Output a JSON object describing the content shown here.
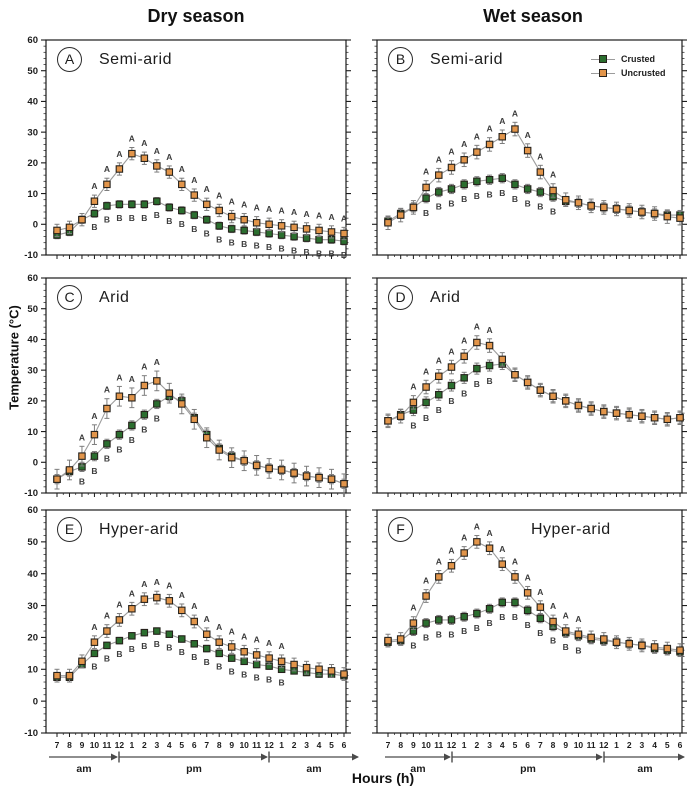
{
  "figure": {
    "column_headers": [
      "Dry season",
      "Wet season"
    ],
    "ylabel": "Temperature (°C)",
    "xlabel": "Hours (h)",
    "hours": [
      "7",
      "8",
      "9",
      "10",
      "11",
      "12",
      "1",
      "2",
      "3",
      "4",
      "5",
      "6",
      "7",
      "8",
      "9",
      "10",
      "11",
      "12",
      "1",
      "2",
      "3",
      "4",
      "5",
      "6"
    ],
    "yticks": [
      60,
      50,
      40,
      30,
      20,
      10,
      0,
      -10
    ],
    "ylim": [
      -10,
      60
    ],
    "period_labels": [
      "am",
      "pm",
      "am"
    ],
    "legend": {
      "crusted": "Crusted",
      "uncrusted": "Uncrusted"
    },
    "sig_letters": {
      "uncrusted": "A",
      "crusted": "B"
    },
    "colors": {
      "crusted": "#2b6e2f",
      "uncrusted": "#e2954a",
      "marker_outline": "#26221c",
      "line": "#9c9c9c",
      "error_bar": "#7d7d7d",
      "axis": "#1a1a1a",
      "letter": "#3c3c3c"
    }
  },
  "chart_data": [
    {
      "id": "A",
      "label": "Semi-arid",
      "season": "Dry season",
      "row": 0,
      "col": 0,
      "type": "line",
      "series": [
        {
          "name": "Crusted",
          "err": 1.2,
          "values": [
            -3.5,
            -2.5,
            1.5,
            3.5,
            6,
            6.5,
            6.5,
            6.5,
            7.5,
            5.5,
            4.5,
            3,
            1.5,
            -0.5,
            -1.5,
            -2,
            -2.5,
            -3,
            -3.5,
            -4,
            -4.5,
            -5,
            -5,
            -5.5
          ]
        },
        {
          "name": "Uncrusted",
          "err": 2.0,
          "values": [
            -2,
            -1,
            1.5,
            7.5,
            13,
            18,
            23,
            21.5,
            19,
            17,
            13,
            9.5,
            6.5,
            4.5,
            2.5,
            1.5,
            0.5,
            0,
            -0.5,
            -1,
            -1.5,
            -2,
            -2.5,
            -3
          ]
        }
      ],
      "sig_range": [
        3,
        23
      ]
    },
    {
      "id": "B",
      "label": "Semi-arid",
      "season": "Wet season",
      "row": 0,
      "col": 1,
      "type": "line",
      "show_legend": true,
      "series": [
        {
          "name": "Crusted",
          "err": 1.5,
          "values": [
            1,
            3.5,
            5.5,
            8.5,
            10.5,
            11.5,
            13,
            14,
            14.5,
            15,
            13,
            11.5,
            10.5,
            9,
            7.5,
            7,
            6,
            5.5,
            5,
            4.5,
            4,
            3.5,
            3,
            3
          ]
        },
        {
          "name": "Uncrusted",
          "err": 2.2,
          "values": [
            0.5,
            3,
            5.5,
            12,
            16,
            18.5,
            21,
            23.5,
            26,
            28.5,
            31,
            24,
            17,
            11,
            8,
            7,
            6,
            5.5,
            5,
            4.5,
            4,
            3.5,
            2.5,
            2
          ]
        }
      ],
      "sig_range": [
        3,
        13
      ]
    },
    {
      "id": "C",
      "label": "Arid",
      "season": "Dry season",
      "row": 1,
      "col": 0,
      "type": "line",
      "series": [
        {
          "name": "Crusted",
          "err": 1.5,
          "values": [
            -5.5,
            -3,
            -1.5,
            2,
            6,
            9,
            12,
            15.5,
            19,
            21.5,
            20,
            14.5,
            9,
            4.5,
            2,
            0.5,
            -1,
            -2,
            -2.5,
            -3.5,
            -4.5,
            -5,
            -5.5,
            -7
          ]
        },
        {
          "name": "Uncrusted",
          "err": 3.2,
          "values": [
            -5.5,
            -2.5,
            2,
            9,
            17.5,
            21.5,
            21,
            25,
            26.5,
            22.5,
            19,
            14,
            8,
            4,
            1.5,
            0.5,
            -1,
            -2,
            -2.5,
            -3.5,
            -4.5,
            -5,
            -5.5,
            -7
          ]
        }
      ],
      "sig_range": [
        2,
        8
      ]
    },
    {
      "id": "D",
      "label": "Arid",
      "season": "Wet season",
      "row": 1,
      "col": 1,
      "type": "line",
      "series": [
        {
          "name": "Crusted",
          "err": 1.8,
          "values": [
            13.5,
            15.5,
            17,
            19.5,
            22,
            25,
            27.5,
            30.5,
            31.5,
            32,
            28.5,
            26,
            23.5,
            21.5,
            20,
            18.5,
            17.5,
            16.5,
            16,
            15.5,
            15,
            14.5,
            14,
            14.5
          ]
        },
        {
          "name": "Uncrusted",
          "err": 2.2,
          "values": [
            13.5,
            15,
            19.5,
            24.5,
            28,
            31,
            34.5,
            39,
            38,
            33.5,
            28.5,
            26,
            23.5,
            21.5,
            20,
            18.5,
            17.5,
            16.5,
            16,
            15.5,
            15,
            14.5,
            14,
            14.5
          ]
        }
      ],
      "sig_range": [
        2,
        8
      ]
    },
    {
      "id": "E",
      "label": "Hyper-arid",
      "season": "Dry season",
      "row": 2,
      "col": 0,
      "type": "line",
      "series": [
        {
          "name": "Crusted",
          "err": 1.0,
          "values": [
            7.5,
            7.5,
            11.5,
            15,
            17.5,
            19,
            20.5,
            21.5,
            22,
            21,
            19.5,
            18,
            16.5,
            15,
            13.5,
            12.5,
            11.5,
            11,
            10,
            9.5,
            9,
            8.5,
            8.5,
            8
          ]
        },
        {
          "name": "Uncrusted",
          "err": 2.0,
          "values": [
            8,
            8,
            12.5,
            18.5,
            22,
            25.5,
            29,
            32,
            32.5,
            31.5,
            28.5,
            25,
            21,
            18.5,
            17,
            15.5,
            14.5,
            13.5,
            12.5,
            11.5,
            10.5,
            10,
            9.5,
            8.5
          ]
        }
      ],
      "sig_range": [
        3,
        18
      ]
    },
    {
      "id": "F",
      "label": "Hyper-arid",
      "season": "Wet season",
      "row": 2,
      "col": 1,
      "type": "line",
      "label_pos": "right",
      "series": [
        {
          "name": "Crusted",
          "err": 1.4,
          "values": [
            18.5,
            19,
            22,
            24.5,
            25.5,
            25.5,
            26.5,
            27.5,
            29,
            31,
            31,
            28.5,
            26,
            23.5,
            21.5,
            20.5,
            19.5,
            19,
            18.5,
            18,
            17.5,
            16.5,
            16,
            15.5
          ]
        },
        {
          "name": "Uncrusted",
          "err": 2.0,
          "values": [
            19,
            19.5,
            24.5,
            33,
            39,
            42.5,
            46.5,
            50,
            48,
            43,
            39,
            34,
            29.5,
            25,
            22,
            21,
            20,
            19.5,
            18.5,
            18,
            17.5,
            17,
            16.5,
            16
          ]
        }
      ],
      "sig_range": [
        2,
        15
      ]
    }
  ]
}
